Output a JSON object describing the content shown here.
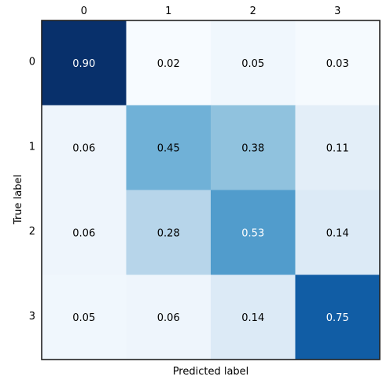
{
  "chart_data": {
    "type": "heatmap",
    "title": "",
    "xlabel": "Predicted label",
    "ylabel": "True label",
    "x_categories": [
      "0",
      "1",
      "2",
      "3"
    ],
    "y_categories": [
      "0",
      "1",
      "2",
      "3"
    ],
    "x_tick_position": "top",
    "values": [
      [
        0.9,
        0.02,
        0.05,
        0.03
      ],
      [
        0.06,
        0.45,
        0.38,
        0.11
      ],
      [
        0.06,
        0.28,
        0.53,
        0.14
      ],
      [
        0.05,
        0.06,
        0.14,
        0.75
      ]
    ],
    "value_format": "2 decimals",
    "colormap": "Blues",
    "color_range": [
      0.02,
      0.9
    ],
    "grid": false,
    "legend": "none"
  }
}
